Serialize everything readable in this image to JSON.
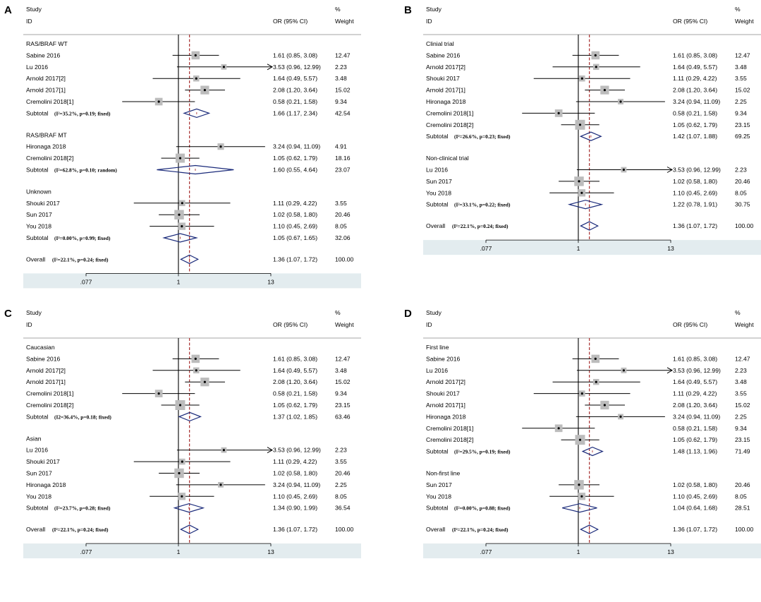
{
  "colors": {
    "axis_band": "#e3ecef",
    "line": "#000000",
    "null_line": "#000000",
    "pooled_line": "#a01c1c",
    "square": "#bcbcbc",
    "diamond": "#1a2a7a",
    "point": "#000000"
  },
  "chart_data": [
    {
      "type": "forest",
      "panel": "A",
      "header": {
        "col1": "Study",
        "col1b": "ID",
        "col2": "OR (95% CI)",
        "col3": "%",
        "col3b": "Weight"
      },
      "xscale": "log",
      "xlim": [
        0.077,
        13
      ],
      "ticks": [
        {
          "v": 0.077,
          "label": ".077"
        },
        {
          "v": 1,
          "label": "1"
        },
        {
          "v": 13,
          "label": "13"
        }
      ],
      "pooled_or": 1.36,
      "groups": [
        {
          "name": "RAS/BRAF WT",
          "studies": [
            {
              "label": "Sabine 2016",
              "or": 1.61,
              "lo": 0.85,
              "hi": 3.08,
              "ci": "1.61 (0.85, 3.08)",
              "weight": "12.47"
            },
            {
              "label": "Lu 2016",
              "or": 3.53,
              "lo": 0.96,
              "hi": 12.99,
              "ci": "3.53 (0.96, 12.99)",
              "weight": "2.23",
              "arrow": true
            },
            {
              "label": "Arnold 2017[2]",
              "or": 1.64,
              "lo": 0.49,
              "hi": 5.57,
              "ci": "1.64 (0.49, 5.57)",
              "weight": "3.48"
            },
            {
              "label": "Arnold 2017[1]",
              "or": 2.08,
              "lo": 1.2,
              "hi": 3.64,
              "ci": "2.08 (1.20, 3.64)",
              "weight": "15.02"
            },
            {
              "label": "Cremolini 2018[1]",
              "or": 0.58,
              "lo": 0.21,
              "hi": 1.58,
              "ci": "0.58 (0.21, 1.58)",
              "weight": "9.34"
            }
          ],
          "subtotal": {
            "label": "Subtotal",
            "stat": "(I²=35.2%, p=0.19; fixed)",
            "or": 1.66,
            "lo": 1.17,
            "hi": 2.34,
            "ci": "1.66 (1.17, 2.34)",
            "weight": "42.54"
          }
        },
        {
          "name": "RAS/BRAF MT",
          "studies": [
            {
              "label": "Hironaga 2018",
              "or": 3.24,
              "lo": 0.94,
              "hi": 11.09,
              "ci": "3.24 (0.94, 11.09)",
              "weight": "4.91"
            },
            {
              "label": "Cremolini 2018[2]",
              "or": 1.05,
              "lo": 0.62,
              "hi": 1.79,
              "ci": "1.05 (0.62, 1.79)",
              "weight": "18.16"
            }
          ],
          "subtotal": {
            "label": "Subtotal",
            "stat": "(I²=62.8%, p=0.10; random)",
            "or": 1.6,
            "lo": 0.55,
            "hi": 4.64,
            "ci": "1.60 (0.55, 4.64)",
            "weight": "23.07"
          }
        },
        {
          "name": "Unknown",
          "studies": [
            {
              "label": "Shouki 2017",
              "or": 1.11,
              "lo": 0.29,
              "hi": 4.22,
              "ci": "1.11 (0.29, 4.22)",
              "weight": "3.55"
            },
            {
              "label": "Sun 2017",
              "or": 1.02,
              "lo": 0.58,
              "hi": 1.8,
              "ci": "1.02 (0.58, 1.80)",
              "weight": "20.46"
            },
            {
              "label": "You 2018",
              "or": 1.1,
              "lo": 0.45,
              "hi": 2.69,
              "ci": "1.10 (0.45, 2.69)",
              "weight": "8.05"
            }
          ],
          "subtotal": {
            "label": "Subtotal",
            "stat": "(I²=0.00%, p=0.99; fixed)",
            "or": 1.05,
            "lo": 0.67,
            "hi": 1.65,
            "ci": "1.05 (0.67, 1.65)",
            "weight": "32.06"
          }
        }
      ],
      "overall": {
        "label": "Overall",
        "stat": "(I²=22.1%, p=0.24; fixed)",
        "or": 1.36,
        "lo": 1.07,
        "hi": 1.72,
        "ci": "1.36 (1.07, 1.72)",
        "weight": "100.00"
      }
    },
    {
      "type": "forest",
      "panel": "B",
      "header": {
        "col1": "Study",
        "col1b": "ID",
        "col2": "OR (95% CI)",
        "col3": "%",
        "col3b": "Weight"
      },
      "xscale": "log",
      "xlim": [
        0.077,
        13
      ],
      "ticks": [
        {
          "v": 0.077,
          "label": ".077"
        },
        {
          "v": 1,
          "label": "1"
        },
        {
          "v": 13,
          "label": "13"
        }
      ],
      "pooled_or": 1.36,
      "groups": [
        {
          "name": "Clinial trial",
          "studies": [
            {
              "label": "Sabine 2016",
              "or": 1.61,
              "lo": 0.85,
              "hi": 3.08,
              "ci": "1.61 (0.85, 3.08)",
              "weight": "12.47"
            },
            {
              "label": "Arnold 2017[2]",
              "or": 1.64,
              "lo": 0.49,
              "hi": 5.57,
              "ci": "1.64 (0.49, 5.57)",
              "weight": "3.48"
            },
            {
              "label": "Shouki 2017",
              "or": 1.11,
              "lo": 0.29,
              "hi": 4.22,
              "ci": "1.11 (0.29, 4.22)",
              "weight": "3.55"
            },
            {
              "label": "Arnold 2017[1]",
              "or": 2.08,
              "lo": 1.2,
              "hi": 3.64,
              "ci": "2.08 (1.20, 3.64)",
              "weight": "15.02"
            },
            {
              "label": "Hironaga 2018",
              "or": 3.24,
              "lo": 0.94,
              "hi": 11.09,
              "ci": "3.24 (0.94, 11.09)",
              "weight": "2.25"
            },
            {
              "label": "Cremolini 2018[1]",
              "or": 0.58,
              "lo": 0.21,
              "hi": 1.58,
              "ci": "0.58 (0.21, 1.58)",
              "weight": "9.34"
            },
            {
              "label": "Cremolini 2018[2]",
              "or": 1.05,
              "lo": 0.62,
              "hi": 1.79,
              "ci": "1.05 (0.62, 1.79)",
              "weight": "23.15"
            }
          ],
          "subtotal": {
            "label": "Subtotal",
            "stat": "(I²=26.6%, p=0.23; fixed)",
            "or": 1.42,
            "lo": 1.07,
            "hi": 1.88,
            "ci": "1.42 (1.07, 1.88)",
            "weight": "69.25"
          }
        },
        {
          "name": "Non-clinical trial",
          "studies": [
            {
              "label": "Lu 2016",
              "or": 3.53,
              "lo": 0.96,
              "hi": 12.99,
              "ci": "3.53 (0.96, 12.99)",
              "weight": "2.23",
              "arrow": true
            },
            {
              "label": "Sun 2017",
              "or": 1.02,
              "lo": 0.58,
              "hi": 1.8,
              "ci": "1.02 (0.58, 1.80)",
              "weight": "20.46"
            },
            {
              "label": "You 2018",
              "or": 1.1,
              "lo": 0.45,
              "hi": 2.69,
              "ci": "1.10 (0.45, 2.69)",
              "weight": "8.05"
            }
          ],
          "subtotal": {
            "label": "Subtotal",
            "stat": "(I²=33.1%, p=0.22; fixed)",
            "or": 1.22,
            "lo": 0.78,
            "hi": 1.91,
            "ci": "1.22 (0.78, 1.91)",
            "weight": "30.75"
          }
        }
      ],
      "overall": {
        "label": "Overall",
        "stat": "(I²=22.1%, p=0.24; fixed)",
        "or": 1.36,
        "lo": 1.07,
        "hi": 1.72,
        "ci": "1.36 (1.07, 1.72)",
        "weight": "100.00"
      }
    },
    {
      "type": "forest",
      "panel": "C",
      "header": {
        "col1": "Study",
        "col1b": "ID",
        "col2": "OR (95% CI)",
        "col3": "%",
        "col3b": "Weight"
      },
      "xscale": "log",
      "xlim": [
        0.077,
        13
      ],
      "ticks": [
        {
          "v": 0.077,
          "label": ".077"
        },
        {
          "v": 1,
          "label": "1"
        },
        {
          "v": 13,
          "label": "13"
        }
      ],
      "pooled_or": 1.36,
      "groups": [
        {
          "name": "Caucasian",
          "studies": [
            {
              "label": "Sabine 2016",
              "or": 1.61,
              "lo": 0.85,
              "hi": 3.08,
              "ci": "1.61 (0.85, 3.08)",
              "weight": "12.47"
            },
            {
              "label": "Arnold 2017[2]",
              "or": 1.64,
              "lo": 0.49,
              "hi": 5.57,
              "ci": "1.64 (0.49, 5.57)",
              "weight": "3.48"
            },
            {
              "label": "Arnold 2017[1]",
              "or": 2.08,
              "lo": 1.2,
              "hi": 3.64,
              "ci": "2.08 (1.20, 3.64)",
              "weight": "15.02"
            },
            {
              "label": "Cremolini 2018[1]",
              "or": 0.58,
              "lo": 0.21,
              "hi": 1.58,
              "ci": "0.58 (0.21, 1.58)",
              "weight": "9.34"
            },
            {
              "label": "Cremolini 2018[2]",
              "or": 1.05,
              "lo": 0.62,
              "hi": 1.79,
              "ci": "1.05 (0.62, 1.79)",
              "weight": "23.15"
            }
          ],
          "subtotal": {
            "label": "Subtotal",
            "stat": "(I2=36.4%, p=0.18; fixed)",
            "or": 1.37,
            "lo": 1.02,
            "hi": 1.85,
            "ci": "1.37 (1.02, 1.85)",
            "weight": "63.46"
          }
        },
        {
          "name": "Asian",
          "studies": [
            {
              "label": "Lu 2016",
              "or": 3.53,
              "lo": 0.96,
              "hi": 12.99,
              "ci": "3.53 (0.96, 12.99)",
              "weight": "2.23",
              "arrow": true
            },
            {
              "label": "Shouki 2017",
              "or": 1.11,
              "lo": 0.29,
              "hi": 4.22,
              "ci": "1.11 (0.29, 4.22)",
              "weight": "3.55"
            },
            {
              "label": "Sun 2017",
              "or": 1.02,
              "lo": 0.58,
              "hi": 1.8,
              "ci": "1.02 (0.58, 1.80)",
              "weight": "20.46"
            },
            {
              "label": "Hironaga 2018",
              "or": 3.24,
              "lo": 0.94,
              "hi": 11.09,
              "ci": "3.24 (0.94, 11.09)",
              "weight": "2.25"
            },
            {
              "label": "You 2018",
              "or": 1.1,
              "lo": 0.45,
              "hi": 2.69,
              "ci": "1.10 (0.45, 2.69)",
              "weight": "8.05"
            }
          ],
          "subtotal": {
            "label": "Subtotal",
            "stat": "(I²=23.7%, p=0.28; fixed)",
            "or": 1.34,
            "lo": 0.9,
            "hi": 1.99,
            "ci": "1.34 (0.90, 1.99)",
            "weight": "36.54"
          }
        }
      ],
      "overall": {
        "label": "Overall",
        "stat": "(I²=22.1%, p=0.24; fixed)",
        "or": 1.36,
        "lo": 1.07,
        "hi": 1.72,
        "ci": "1.36 (1.07, 1.72)",
        "weight": "100.00"
      }
    },
    {
      "type": "forest",
      "panel": "D",
      "header": {
        "col1": "Study",
        "col1b": "ID",
        "col2": "OR (95% CI)",
        "col3": "%",
        "col3b": "Weight"
      },
      "xscale": "log",
      "xlim": [
        0.077,
        13
      ],
      "ticks": [
        {
          "v": 0.077,
          "label": ".077"
        },
        {
          "v": 1,
          "label": "1"
        },
        {
          "v": 13,
          "label": "13"
        }
      ],
      "pooled_or": 1.36,
      "groups": [
        {
          "name": "First line",
          "studies": [
            {
              "label": "Sabine 2016",
              "or": 1.61,
              "lo": 0.85,
              "hi": 3.08,
              "ci": "1.61 (0.85, 3.08)",
              "weight": "12.47"
            },
            {
              "label": "Lu 2016",
              "or": 3.53,
              "lo": 0.96,
              "hi": 12.99,
              "ci": "3.53 (0.96, 12.99)",
              "weight": "2.23",
              "arrow": true
            },
            {
              "label": "Arnold 2017[2]",
              "or": 1.64,
              "lo": 0.49,
              "hi": 5.57,
              "ci": "1.64 (0.49, 5.57)",
              "weight": "3.48"
            },
            {
              "label": "Shouki 2017",
              "or": 1.11,
              "lo": 0.29,
              "hi": 4.22,
              "ci": "1.11 (0.29, 4.22)",
              "weight": "3.55"
            },
            {
              "label": "Arnold 2017[1]",
              "or": 2.08,
              "lo": 1.2,
              "hi": 3.64,
              "ci": "2.08 (1.20, 3.64)",
              "weight": "15.02"
            },
            {
              "label": "Hironaga 2018",
              "or": 3.24,
              "lo": 0.94,
              "hi": 11.09,
              "ci": "3.24 (0.94, 11.09)",
              "weight": "2.25"
            },
            {
              "label": "Cremolini 2018[1]",
              "or": 0.58,
              "lo": 0.21,
              "hi": 1.58,
              "ci": "0.58 (0.21, 1.58)",
              "weight": "9.34"
            },
            {
              "label": "Cremolini 2018[2]",
              "or": 1.05,
              "lo": 0.62,
              "hi": 1.79,
              "ci": "1.05 (0.62, 1.79)",
              "weight": "23.15"
            }
          ],
          "subtotal": {
            "label": "Subtotal",
            "stat": "(I²=29.5%, p=0.19; fixed)",
            "or": 1.48,
            "lo": 1.13,
            "hi": 1.96,
            "ci": "1.48 (1.13, 1.96)",
            "weight": "71.49"
          }
        },
        {
          "name": "Non-first line",
          "studies": [
            {
              "label": "Sun 2017",
              "or": 1.02,
              "lo": 0.58,
              "hi": 1.8,
              "ci": "1.02 (0.58, 1.80)",
              "weight": "20.46"
            },
            {
              "label": "You 2018",
              "or": 1.1,
              "lo": 0.45,
              "hi": 2.69,
              "ci": "1.10 (0.45, 2.69)",
              "weight": "8.05"
            }
          ],
          "subtotal": {
            "label": "Subtotal",
            "stat": "(I²=0.00%, p=0.88; fixed)",
            "or": 1.04,
            "lo": 0.64,
            "hi": 1.68,
            "ci": "1.04 (0.64, 1.68)",
            "weight": "28.51"
          }
        }
      ],
      "overall": {
        "label": "Overall",
        "stat": "(I²=22.1%, p=0.24; fixed)",
        "or": 1.36,
        "lo": 1.07,
        "hi": 1.72,
        "ci": "1.36 (1.07, 1.72)",
        "weight": "100.00"
      }
    }
  ]
}
